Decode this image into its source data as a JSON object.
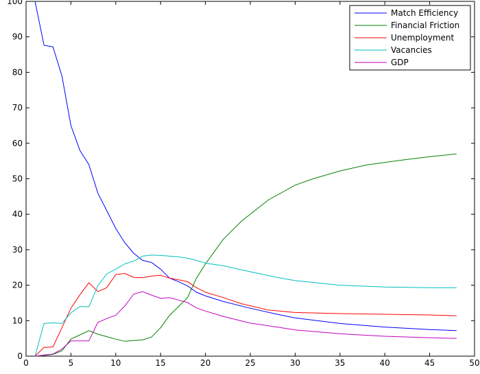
{
  "chart_data": {
    "type": "line",
    "title": "",
    "xlabel": "",
    "ylabel": "",
    "xlim": [
      0,
      50
    ],
    "ylim": [
      0,
      100
    ],
    "xticks": [
      0,
      5,
      10,
      15,
      20,
      25,
      30,
      35,
      40,
      45,
      50
    ],
    "yticks": [
      0,
      10,
      20,
      30,
      40,
      50,
      60,
      70,
      80,
      90,
      100
    ],
    "grid": false,
    "legend_position": "top-right",
    "series": [
      {
        "name": "Match Efficiency",
        "color": "#0000ff",
        "points": [
          [
            1,
            100
          ],
          [
            2,
            87.6
          ],
          [
            3,
            87.2
          ],
          [
            4,
            79
          ],
          [
            5,
            65
          ],
          [
            6,
            58
          ],
          [
            7,
            54
          ],
          [
            8,
            46
          ],
          [
            9,
            41
          ],
          [
            10,
            36
          ],
          [
            11,
            32
          ],
          [
            12,
            29
          ],
          [
            13,
            27
          ],
          [
            14,
            26.4
          ],
          [
            15,
            24.5
          ],
          [
            16,
            22
          ],
          [
            17,
            21
          ],
          [
            18,
            19.8
          ],
          [
            19,
            18
          ],
          [
            20,
            17
          ],
          [
            22,
            15.4
          ],
          [
            25,
            13.5
          ],
          [
            28,
            11.8
          ],
          [
            30,
            10.8
          ],
          [
            35,
            9.2
          ],
          [
            40,
            8.2
          ],
          [
            45,
            7.5
          ],
          [
            48,
            7.2
          ]
        ]
      },
      {
        "name": "Financial Friction",
        "color": "#008000",
        "points": [
          [
            1,
            0
          ],
          [
            2,
            0.2
          ],
          [
            3,
            0.5
          ],
          [
            4,
            1.5
          ],
          [
            5,
            4.8
          ],
          [
            6,
            6
          ],
          [
            7,
            7.2
          ],
          [
            8,
            6.2
          ],
          [
            9,
            5.5
          ],
          [
            10,
            4.8
          ],
          [
            11,
            4.2
          ],
          [
            12,
            4.4
          ],
          [
            13,
            4.6
          ],
          [
            14,
            5.4
          ],
          [
            15,
            8
          ],
          [
            16,
            11.5
          ],
          [
            17,
            14
          ],
          [
            18,
            16.5
          ],
          [
            19,
            22
          ],
          [
            20,
            26
          ],
          [
            22,
            33
          ],
          [
            24,
            38
          ],
          [
            27,
            44
          ],
          [
            30,
            48.2
          ],
          [
            32,
            50
          ],
          [
            35,
            52.2
          ],
          [
            38,
            53.9
          ],
          [
            42,
            55.3
          ],
          [
            45,
            56.2
          ],
          [
            48,
            57
          ]
        ]
      },
      {
        "name": "Unemployment",
        "color": "#ff0000",
        "points": [
          [
            1,
            0
          ],
          [
            2,
            2.5
          ],
          [
            3,
            2.6
          ],
          [
            4,
            8
          ],
          [
            5,
            13.5
          ],
          [
            6,
            17.3
          ],
          [
            7,
            20.7
          ],
          [
            8,
            18.2
          ],
          [
            9,
            19.3
          ],
          [
            10,
            23
          ],
          [
            11,
            23.3
          ],
          [
            12,
            22.2
          ],
          [
            13,
            22.1
          ],
          [
            14,
            22.6
          ],
          [
            15,
            22.8
          ],
          [
            16,
            22
          ],
          [
            17,
            21.5
          ],
          [
            18,
            21
          ],
          [
            19,
            19.3
          ],
          [
            20,
            18
          ],
          [
            22,
            16.5
          ],
          [
            24,
            14.8
          ],
          [
            27,
            13
          ],
          [
            30,
            12.3
          ],
          [
            35,
            12
          ],
          [
            40,
            11.8
          ],
          [
            45,
            11.6
          ],
          [
            48,
            11.4
          ]
        ]
      },
      {
        "name": "Vacancies",
        "color": "#00bfbf",
        "points": [
          [
            1,
            0
          ],
          [
            2,
            9.2
          ],
          [
            3,
            9.4
          ],
          [
            4,
            9.2
          ],
          [
            5,
            12.2
          ],
          [
            6,
            14
          ],
          [
            7,
            13.9
          ],
          [
            8,
            19.8
          ],
          [
            9,
            23.2
          ],
          [
            10,
            24.5
          ],
          [
            11,
            26
          ],
          [
            12,
            26.8
          ],
          [
            13,
            28.2
          ],
          [
            14,
            28.5
          ],
          [
            15,
            28.4
          ],
          [
            16,
            28.2
          ],
          [
            17,
            28
          ],
          [
            18,
            27.6
          ],
          [
            19,
            27
          ],
          [
            20,
            26.2
          ],
          [
            22,
            25.5
          ],
          [
            25,
            23.8
          ],
          [
            28,
            22.2
          ],
          [
            30,
            21.3
          ],
          [
            35,
            20
          ],
          [
            40,
            19.5
          ],
          [
            45,
            19.3
          ],
          [
            48,
            19.3
          ]
        ]
      },
      {
        "name": "GDP",
        "color": "#bf00bf",
        "points": [
          [
            1,
            0
          ],
          [
            2,
            0.3
          ],
          [
            3,
            0.6
          ],
          [
            4,
            2
          ],
          [
            5,
            4.3
          ],
          [
            6,
            4.3
          ],
          [
            7,
            4.3
          ],
          [
            8,
            9.5
          ],
          [
            9,
            10.6
          ],
          [
            10,
            11.5
          ],
          [
            11,
            14.1
          ],
          [
            12,
            17.5
          ],
          [
            13,
            18.2
          ],
          [
            14,
            17.2
          ],
          [
            15,
            16.3
          ],
          [
            16,
            16.5
          ],
          [
            17,
            15.8
          ],
          [
            18,
            15.1
          ],
          [
            19,
            13.6
          ],
          [
            20,
            12.7
          ],
          [
            22,
            11.2
          ],
          [
            25,
            9.3
          ],
          [
            28,
            8.2
          ],
          [
            30,
            7.4
          ],
          [
            35,
            6.3
          ],
          [
            40,
            5.6
          ],
          [
            45,
            5.2
          ],
          [
            48,
            5
          ]
        ]
      }
    ]
  }
}
